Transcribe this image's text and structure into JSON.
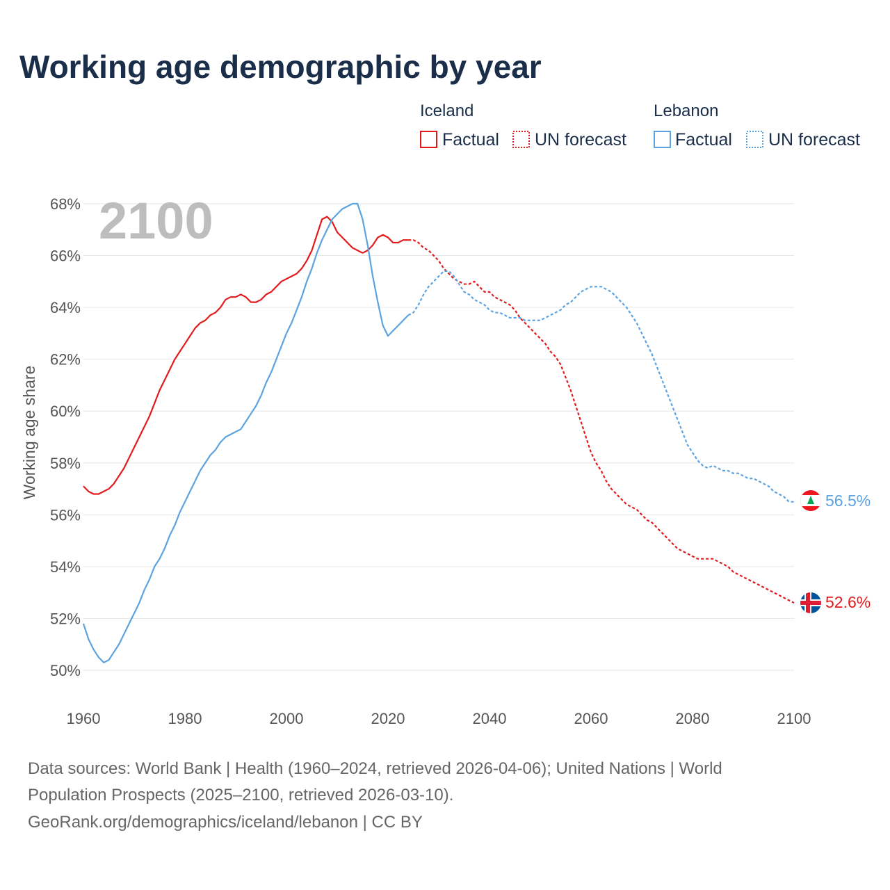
{
  "chart_data": {
    "type": "line",
    "title": "Working age demographic by year",
    "ylabel": "Working age share",
    "xlabel": "",
    "year_display": "2100",
    "xlim": [
      1960,
      2100
    ],
    "ylim": [
      50,
      68
    ],
    "x_ticks": [
      1960,
      1980,
      2000,
      2020,
      2040,
      2060,
      2080,
      2100
    ],
    "y_ticks": [
      50,
      52,
      54,
      56,
      58,
      60,
      62,
      64,
      66,
      68
    ],
    "y_tick_suffix": "%",
    "legend": {
      "groups": [
        {
          "title": "Iceland",
          "color": "#e31a1c",
          "entries": [
            "Factual",
            "UN forecast"
          ]
        },
        {
          "title": "Lebanon",
          "color": "#5ba3e0",
          "entries": [
            "Factual",
            "UN forecast"
          ]
        }
      ]
    },
    "series": [
      {
        "name": "Iceland",
        "color": "#e31a1c",
        "end_label": "52.6%",
        "flag": "iceland-flag",
        "factual": [
          [
            1960,
            57.1
          ],
          [
            1961,
            56.9
          ],
          [
            1962,
            56.8
          ],
          [
            1963,
            56.8
          ],
          [
            1964,
            56.9
          ],
          [
            1965,
            57.0
          ],
          [
            1966,
            57.2
          ],
          [
            1967,
            57.5
          ],
          [
            1968,
            57.8
          ],
          [
            1969,
            58.2
          ],
          [
            1970,
            58.6
          ],
          [
            1971,
            59.0
          ],
          [
            1972,
            59.4
          ],
          [
            1973,
            59.8
          ],
          [
            1974,
            60.3
          ],
          [
            1975,
            60.8
          ],
          [
            1976,
            61.2
          ],
          [
            1977,
            61.6
          ],
          [
            1978,
            62.0
          ],
          [
            1979,
            62.3
          ],
          [
            1980,
            62.6
          ],
          [
            1981,
            62.9
          ],
          [
            1982,
            63.2
          ],
          [
            1983,
            63.4
          ],
          [
            1984,
            63.5
          ],
          [
            1985,
            63.7
          ],
          [
            1986,
            63.8
          ],
          [
            1987,
            64.0
          ],
          [
            1988,
            64.3
          ],
          [
            1989,
            64.4
          ],
          [
            1990,
            64.4
          ],
          [
            1991,
            64.5
          ],
          [
            1992,
            64.4
          ],
          [
            1993,
            64.2
          ],
          [
            1994,
            64.2
          ],
          [
            1995,
            64.3
          ],
          [
            1996,
            64.5
          ],
          [
            1997,
            64.6
          ],
          [
            1998,
            64.8
          ],
          [
            1999,
            65.0
          ],
          [
            2000,
            65.1
          ],
          [
            2001,
            65.2
          ],
          [
            2002,
            65.3
          ],
          [
            2003,
            65.5
          ],
          [
            2004,
            65.8
          ],
          [
            2005,
            66.2
          ],
          [
            2006,
            66.8
          ],
          [
            2007,
            67.4
          ],
          [
            2008,
            67.5
          ],
          [
            2009,
            67.3
          ],
          [
            2010,
            66.9
          ],
          [
            2011,
            66.7
          ],
          [
            2012,
            66.5
          ],
          [
            2013,
            66.3
          ],
          [
            2014,
            66.2
          ],
          [
            2015,
            66.1
          ],
          [
            2016,
            66.2
          ],
          [
            2017,
            66.4
          ],
          [
            2018,
            66.7
          ],
          [
            2019,
            66.8
          ],
          [
            2020,
            66.7
          ],
          [
            2021,
            66.5
          ],
          [
            2022,
            66.5
          ],
          [
            2023,
            66.6
          ],
          [
            2024,
            66.6
          ]
        ],
        "forecast": [
          [
            2024,
            66.6
          ],
          [
            2025,
            66.6
          ],
          [
            2026,
            66.5
          ],
          [
            2027,
            66.3
          ],
          [
            2028,
            66.2
          ],
          [
            2029,
            66.0
          ],
          [
            2030,
            65.8
          ],
          [
            2031,
            65.5
          ],
          [
            2032,
            65.3
          ],
          [
            2033,
            65.1
          ],
          [
            2034,
            65.0
          ],
          [
            2035,
            64.9
          ],
          [
            2036,
            64.9
          ],
          [
            2037,
            65.0
          ],
          [
            2038,
            64.8
          ],
          [
            2039,
            64.6
          ],
          [
            2040,
            64.6
          ],
          [
            2041,
            64.4
          ],
          [
            2042,
            64.3
          ],
          [
            2043,
            64.2
          ],
          [
            2044,
            64.1
          ],
          [
            2045,
            63.9
          ],
          [
            2046,
            63.6
          ],
          [
            2047,
            63.4
          ],
          [
            2048,
            63.2
          ],
          [
            2049,
            63.0
          ],
          [
            2050,
            62.8
          ],
          [
            2051,
            62.6
          ],
          [
            2052,
            62.3
          ],
          [
            2053,
            62.1
          ],
          [
            2054,
            61.8
          ],
          [
            2055,
            61.3
          ],
          [
            2056,
            60.8
          ],
          [
            2057,
            60.2
          ],
          [
            2058,
            59.6
          ],
          [
            2059,
            59.0
          ],
          [
            2060,
            58.4
          ],
          [
            2061,
            58.0
          ],
          [
            2062,
            57.7
          ],
          [
            2063,
            57.3
          ],
          [
            2064,
            57.0
          ],
          [
            2065,
            56.8
          ],
          [
            2066,
            56.6
          ],
          [
            2067,
            56.4
          ],
          [
            2068,
            56.3
          ],
          [
            2069,
            56.2
          ],
          [
            2070,
            56.0
          ],
          [
            2071,
            55.8
          ],
          [
            2072,
            55.7
          ],
          [
            2073,
            55.5
          ],
          [
            2074,
            55.3
          ],
          [
            2075,
            55.1
          ],
          [
            2076,
            54.9
          ],
          [
            2077,
            54.7
          ],
          [
            2078,
            54.6
          ],
          [
            2079,
            54.5
          ],
          [
            2080,
            54.4
          ],
          [
            2081,
            54.3
          ],
          [
            2082,
            54.3
          ],
          [
            2083,
            54.3
          ],
          [
            2084,
            54.3
          ],
          [
            2085,
            54.2
          ],
          [
            2086,
            54.1
          ],
          [
            2087,
            54.0
          ],
          [
            2088,
            53.8
          ],
          [
            2089,
            53.7
          ],
          [
            2090,
            53.6
          ],
          [
            2091,
            53.5
          ],
          [
            2092,
            53.4
          ],
          [
            2093,
            53.3
          ],
          [
            2094,
            53.2
          ],
          [
            2095,
            53.1
          ],
          [
            2096,
            53.0
          ],
          [
            2097,
            52.9
          ],
          [
            2098,
            52.8
          ],
          [
            2099,
            52.7
          ],
          [
            2100,
            52.6
          ]
        ]
      },
      {
        "name": "Lebanon",
        "color": "#5ba3e0",
        "end_label": "56.5%",
        "flag": "lebanon-flag",
        "factual": [
          [
            1960,
            51.8
          ],
          [
            1961,
            51.2
          ],
          [
            1962,
            50.8
          ],
          [
            1963,
            50.5
          ],
          [
            1964,
            50.3
          ],
          [
            1965,
            50.4
          ],
          [
            1966,
            50.7
          ],
          [
            1967,
            51.0
          ],
          [
            1968,
            51.4
          ],
          [
            1969,
            51.8
          ],
          [
            1970,
            52.2
          ],
          [
            1971,
            52.6
          ],
          [
            1972,
            53.1
          ],
          [
            1973,
            53.5
          ],
          [
            1974,
            54.0
          ],
          [
            1975,
            54.3
          ],
          [
            1976,
            54.7
          ],
          [
            1977,
            55.2
          ],
          [
            1978,
            55.6
          ],
          [
            1979,
            56.1
          ],
          [
            1980,
            56.5
          ],
          [
            1981,
            56.9
          ],
          [
            1982,
            57.3
          ],
          [
            1983,
            57.7
          ],
          [
            1984,
            58.0
          ],
          [
            1985,
            58.3
          ],
          [
            1986,
            58.5
          ],
          [
            1987,
            58.8
          ],
          [
            1988,
            59.0
          ],
          [
            1989,
            59.1
          ],
          [
            1990,
            59.2
          ],
          [
            1991,
            59.3
          ],
          [
            1992,
            59.6
          ],
          [
            1993,
            59.9
          ],
          [
            1994,
            60.2
          ],
          [
            1995,
            60.6
          ],
          [
            1996,
            61.1
          ],
          [
            1997,
            61.5
          ],
          [
            1998,
            62.0
          ],
          [
            1999,
            62.5
          ],
          [
            2000,
            63.0
          ],
          [
            2001,
            63.4
          ],
          [
            2002,
            63.9
          ],
          [
            2003,
            64.4
          ],
          [
            2004,
            65.0
          ],
          [
            2005,
            65.5
          ],
          [
            2006,
            66.1
          ],
          [
            2007,
            66.6
          ],
          [
            2008,
            67.0
          ],
          [
            2009,
            67.4
          ],
          [
            2010,
            67.6
          ],
          [
            2011,
            67.8
          ],
          [
            2012,
            67.9
          ],
          [
            2013,
            68.0
          ],
          [
            2014,
            68.0
          ],
          [
            2015,
            67.4
          ],
          [
            2016,
            66.4
          ],
          [
            2017,
            65.2
          ],
          [
            2018,
            64.2
          ],
          [
            2019,
            63.3
          ],
          [
            2020,
            62.9
          ],
          [
            2021,
            63.1
          ],
          [
            2022,
            63.3
          ],
          [
            2023,
            63.5
          ],
          [
            2024,
            63.7
          ]
        ],
        "forecast": [
          [
            2024,
            63.7
          ],
          [
            2025,
            63.8
          ],
          [
            2026,
            64.1
          ],
          [
            2027,
            64.5
          ],
          [
            2028,
            64.8
          ],
          [
            2029,
            65.0
          ],
          [
            2030,
            65.2
          ],
          [
            2031,
            65.4
          ],
          [
            2032,
            65.4
          ],
          [
            2033,
            65.2
          ],
          [
            2034,
            64.9
          ],
          [
            2035,
            64.6
          ],
          [
            2036,
            64.5
          ],
          [
            2037,
            64.3
          ],
          [
            2038,
            64.2
          ],
          [
            2039,
            64.1
          ],
          [
            2040,
            63.9
          ],
          [
            2041,
            63.8
          ],
          [
            2042,
            63.8
          ],
          [
            2043,
            63.7
          ],
          [
            2044,
            63.6
          ],
          [
            2045,
            63.6
          ],
          [
            2046,
            63.6
          ],
          [
            2047,
            63.5
          ],
          [
            2048,
            63.5
          ],
          [
            2049,
            63.5
          ],
          [
            2050,
            63.5
          ],
          [
            2051,
            63.6
          ],
          [
            2052,
            63.7
          ],
          [
            2053,
            63.8
          ],
          [
            2054,
            63.9
          ],
          [
            2055,
            64.1
          ],
          [
            2056,
            64.2
          ],
          [
            2057,
            64.4
          ],
          [
            2058,
            64.6
          ],
          [
            2059,
            64.7
          ],
          [
            2060,
            64.8
          ],
          [
            2061,
            64.8
          ],
          [
            2062,
            64.8
          ],
          [
            2063,
            64.7
          ],
          [
            2064,
            64.6
          ],
          [
            2065,
            64.4
          ],
          [
            2066,
            64.2
          ],
          [
            2067,
            64.0
          ],
          [
            2068,
            63.7
          ],
          [
            2069,
            63.4
          ],
          [
            2070,
            63.0
          ],
          [
            2071,
            62.6
          ],
          [
            2072,
            62.2
          ],
          [
            2073,
            61.7
          ],
          [
            2074,
            61.2
          ],
          [
            2075,
            60.7
          ],
          [
            2076,
            60.2
          ],
          [
            2077,
            59.7
          ],
          [
            2078,
            59.2
          ],
          [
            2079,
            58.7
          ],
          [
            2080,
            58.4
          ],
          [
            2081,
            58.1
          ],
          [
            2082,
            57.9
          ],
          [
            2083,
            57.8
          ],
          [
            2084,
            57.9
          ],
          [
            2085,
            57.8
          ],
          [
            2086,
            57.7
          ],
          [
            2087,
            57.7
          ],
          [
            2088,
            57.6
          ],
          [
            2089,
            57.6
          ],
          [
            2090,
            57.5
          ],
          [
            2091,
            57.4
          ],
          [
            2092,
            57.4
          ],
          [
            2093,
            57.3
          ],
          [
            2094,
            57.2
          ],
          [
            2095,
            57.1
          ],
          [
            2096,
            56.9
          ],
          [
            2097,
            56.8
          ],
          [
            2098,
            56.7
          ],
          [
            2099,
            56.5
          ],
          [
            2100,
            56.5
          ]
        ]
      }
    ]
  },
  "footer": {
    "line1": "Data sources: World Bank | Health (1960–2024, retrieved 2026-04-06); United Nations | World",
    "line2": "Population Prospects (2025–2100, retrieved 2026-03-10).",
    "line3": "GeoRank.org/demographics/iceland/lebanon | CC BY"
  }
}
